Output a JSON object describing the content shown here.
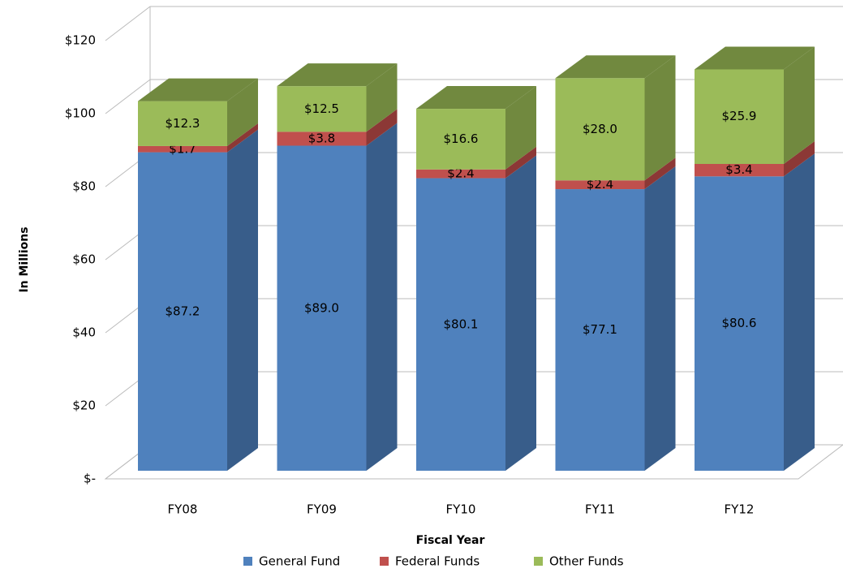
{
  "chart_data": {
    "type": "bar3d_stacked",
    "x_label": "Fiscal Year",
    "y_label": "In Millions",
    "categories": [
      "FY08",
      "FY09",
      "FY10",
      "FY11",
      "FY12"
    ],
    "series": [
      {
        "name": "General Fund",
        "color": "#4f81bd",
        "side_color": "#385d8a",
        "values": [
          87.2,
          89.0,
          80.1,
          77.1,
          80.6
        ],
        "value_labels": [
          "$87.2",
          "$89.0",
          "$80.1",
          "$77.1",
          "$80.6"
        ]
      },
      {
        "name": "Federal Funds",
        "color": "#c0504d",
        "side_color": "#8c3836",
        "values": [
          1.7,
          3.8,
          2.4,
          2.4,
          3.4
        ],
        "value_labels": [
          "$1.7",
          "$3.8",
          "$2.4",
          "$2.4",
          "$3.4"
        ]
      },
      {
        "name": "Other Funds",
        "color": "#9bbb59",
        "side_color": "#71893f",
        "values": [
          12.3,
          12.5,
          16.6,
          28.0,
          25.9
        ],
        "value_labels": [
          "$12.3",
          "$12.5",
          "$16.6",
          "$28.0",
          "$25.9"
        ]
      }
    ],
    "ylim": [
      0,
      120
    ],
    "yticks": [
      {
        "value": 0,
        "label": "$-"
      },
      {
        "value": 20,
        "label": "$20"
      },
      {
        "value": 40,
        "label": "$40"
      },
      {
        "value": 60,
        "label": "$60"
      },
      {
        "value": 80,
        "label": "$80"
      },
      {
        "value": 100,
        "label": "$100"
      },
      {
        "value": 120,
        "label": "$120"
      }
    ],
    "grid": true,
    "legend": "bottom"
  }
}
